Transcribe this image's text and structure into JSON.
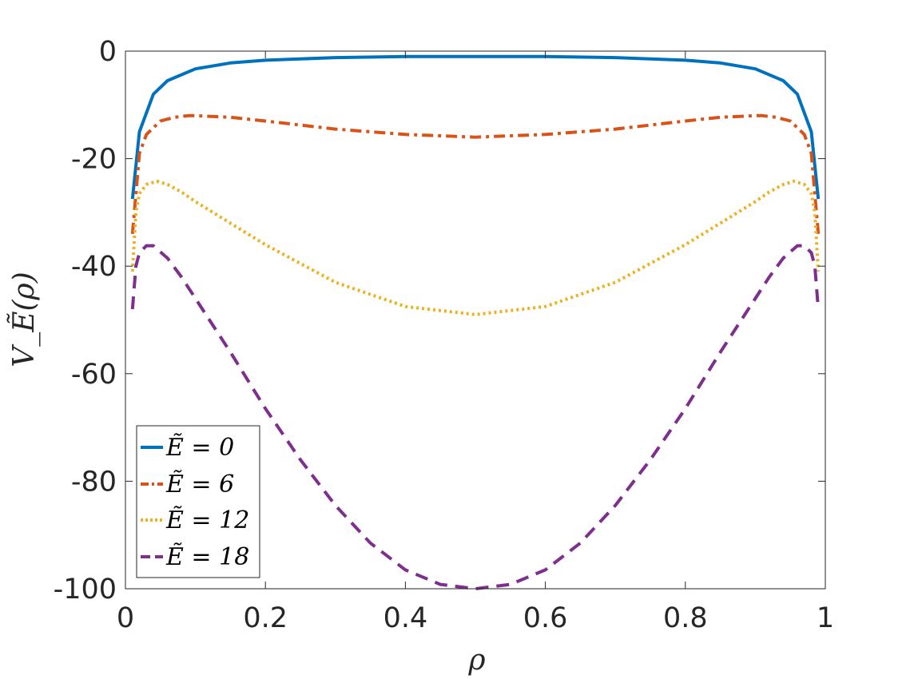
{
  "chart_data": {
    "type": "line",
    "xlabel": "ρ",
    "ylabel": "V_Ẽ(ρ)",
    "xlim": [
      0,
      1
    ],
    "ylim": [
      -100,
      0
    ],
    "xticks": [
      0,
      0.2,
      0.4,
      0.6,
      0.8,
      1
    ],
    "xtick_labels": [
      "0",
      "0.2",
      "0.4",
      "0.6",
      "0.8",
      "1"
    ],
    "yticks": [
      0,
      -20,
      -40,
      -60,
      -80,
      -100
    ],
    "ytick_labels": [
      "0",
      "-20",
      "-40",
      "-60",
      "-80",
      "-100"
    ],
    "grid": false,
    "legend_position": "bottom-left",
    "series": [
      {
        "name": "Ẽ = 0",
        "color": "#0072BD",
        "style": "solid",
        "x": [
          0.01,
          0.02,
          0.04,
          0.06,
          0.1,
          0.15,
          0.2,
          0.3,
          0.4,
          0.5,
          0.6,
          0.7,
          0.8,
          0.85,
          0.9,
          0.94,
          0.96,
          0.98,
          0.99
        ],
        "y": [
          -27.5,
          -15,
          -8,
          -5.5,
          -3.3,
          -2.2,
          -1.7,
          -1.2,
          -1.0,
          -1.0,
          -1.0,
          -1.2,
          -1.7,
          -2.2,
          -3.3,
          -5.5,
          -8,
          -15,
          -27.5
        ]
      },
      {
        "name": "Ẽ = 6",
        "color": "#D95319",
        "style": "dash-dot",
        "x": [
          0.01,
          0.02,
          0.03,
          0.05,
          0.07,
          0.09,
          0.1,
          0.15,
          0.2,
          0.3,
          0.4,
          0.5,
          0.6,
          0.7,
          0.8,
          0.85,
          0.9,
          0.91,
          0.93,
          0.95,
          0.97,
          0.98,
          0.99
        ],
        "y": [
          -34,
          -19,
          -15.5,
          -13,
          -12.3,
          -12.0,
          -12.0,
          -12.3,
          -13,
          -14.5,
          -15.5,
          -16,
          -15.5,
          -14.5,
          -13,
          -12.3,
          -12.0,
          -12.0,
          -12.3,
          -13,
          -15.5,
          -19,
          -34
        ]
      },
      {
        "name": "Ẽ = 12",
        "color": "#EDB120",
        "style": "dotted",
        "x": [
          0.01,
          0.015,
          0.02,
          0.03,
          0.045,
          0.06,
          0.08,
          0.1,
          0.15,
          0.2,
          0.3,
          0.4,
          0.5,
          0.6,
          0.7,
          0.8,
          0.85,
          0.9,
          0.92,
          0.94,
          0.955,
          0.97,
          0.98,
          0.985,
          0.99
        ],
        "y": [
          -41,
          -30,
          -26.5,
          -24.8,
          -24.2,
          -24.8,
          -26.2,
          -28,
          -32,
          -36,
          -43,
          -47.5,
          -49,
          -47.5,
          -43,
          -36,
          -32,
          -28,
          -26.2,
          -24.8,
          -24.2,
          -24.8,
          -26.5,
          -30,
          -41
        ]
      },
      {
        "name": "Ẽ = 18",
        "color": "#7E2F8E",
        "style": "dashed",
        "x": [
          0.01,
          0.015,
          0.02,
          0.03,
          0.04,
          0.06,
          0.08,
          0.1,
          0.15,
          0.2,
          0.25,
          0.3,
          0.35,
          0.4,
          0.45,
          0.5,
          0.55,
          0.6,
          0.65,
          0.7,
          0.75,
          0.8,
          0.85,
          0.9,
          0.92,
          0.94,
          0.96,
          0.97,
          0.98,
          0.985,
          0.99
        ],
        "y": [
          -48,
          -40,
          -37.5,
          -36.2,
          -36.2,
          -38.5,
          -42,
          -46,
          -56,
          -66.5,
          -76,
          -84.5,
          -91.5,
          -96.5,
          -99.2,
          -100,
          -99.2,
          -96.5,
          -91.5,
          -84.5,
          -76,
          -66.5,
          -56,
          -46,
          -42,
          -38.5,
          -36.2,
          -36.2,
          -37.5,
          -40,
          -48
        ]
      }
    ]
  }
}
